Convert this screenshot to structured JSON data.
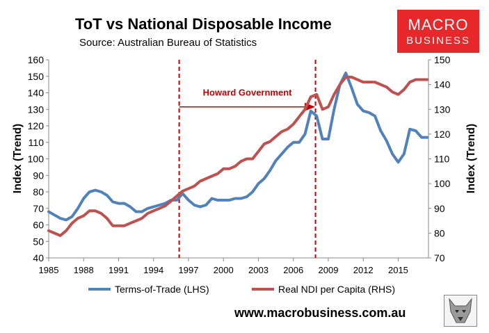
{
  "header": {
    "title": "ToT vs National Disposable Income",
    "subtitle": "Source: Australian Bureau of Statistics"
  },
  "logo": {
    "line1": "MACRO",
    "line2": "BUSINESS",
    "color": "#e8272a",
    "icon": "wolf-mascot-icon"
  },
  "footer": {
    "url": "www.macrobusiness.com.au"
  },
  "chart_data": {
    "type": "line",
    "title": "ToT vs National Disposable Income",
    "subtitle": "Source: Australian Bureau of Statistics",
    "xlabel": "",
    "ylabel_left": "Index (Trend)",
    "ylabel_right": "Index (Trend)",
    "xlim": [
      1985,
      2017.6
    ],
    "ylim_left": [
      40,
      160
    ],
    "ylim_right": [
      70,
      150
    ],
    "x_ticks": [
      1985,
      1988,
      1991,
      1994,
      1997,
      2000,
      2003,
      2006,
      2009,
      2012,
      2015
    ],
    "y_ticks_left": [
      40,
      50,
      60,
      70,
      80,
      90,
      100,
      110,
      120,
      130,
      140,
      150,
      160
    ],
    "y_ticks_right": [
      70,
      80,
      90,
      100,
      110,
      120,
      130,
      140,
      150
    ],
    "grid": false,
    "legend_position": "bottom",
    "annotation": {
      "label": "Howard Government",
      "color": "#c00000",
      "start": 1996.2,
      "end": 2007.9,
      "arrow_y_right": 131
    },
    "series": [
      {
        "name": "Terms-of-Trade (LHS)",
        "axis": "left",
        "color": "#4f81bd",
        "x": [
          1985,
          1985.5,
          1986,
          1986.5,
          1987,
          1987.5,
          1988,
          1988.5,
          1989,
          1989.5,
          1990,
          1990.5,
          1991,
          1991.5,
          1992,
          1992.5,
          1993,
          1993.5,
          1994,
          1994.5,
          1995,
          1995.5,
          1996,
          1996.5,
          1997,
          1997.5,
          1998,
          1998.5,
          1999,
          1999.5,
          2000,
          2000.5,
          2001,
          2001.5,
          2002,
          2002.5,
          2003,
          2003.5,
          2004,
          2004.5,
          2005,
          2005.5,
          2006,
          2006.5,
          2007,
          2007.5,
          2008,
          2008.5,
          2009,
          2009.5,
          2010,
          2010.5,
          2011,
          2011.5,
          2012,
          2012.5,
          2013,
          2013.5,
          2014,
          2014.5,
          2015,
          2015.5,
          2016,
          2016.5,
          2017,
          2017.5
        ],
        "values": [
          68,
          66,
          64,
          63,
          65,
          70,
          76,
          80,
          81,
          80,
          78,
          74,
          73,
          73,
          71,
          68,
          68,
          70,
          71,
          72,
          73,
          75,
          75,
          79,
          75,
          72,
          71,
          72,
          76,
          75,
          75,
          75,
          76,
          76,
          77,
          80,
          85,
          88,
          93,
          99,
          103,
          107,
          110,
          110,
          115,
          129,
          126,
          112,
          112,
          130,
          145,
          152,
          143,
          133,
          129,
          128,
          126,
          117,
          111,
          103,
          98,
          103,
          118,
          117,
          113,
          113
        ]
      },
      {
        "name": "Real NDI per Capita (RHS)",
        "axis": "right",
        "color": "#c0504d",
        "x": [
          1985,
          1985.5,
          1986,
          1986.5,
          1987,
          1987.5,
          1988,
          1988.5,
          1989,
          1989.5,
          1990,
          1990.5,
          1991,
          1991.5,
          1992,
          1992.5,
          1993,
          1993.5,
          1994,
          1994.5,
          1995,
          1995.5,
          1996,
          1996.5,
          1997,
          1997.5,
          1998,
          1998.5,
          1999,
          1999.5,
          2000,
          2000.5,
          2001,
          2001.5,
          2002,
          2002.5,
          2003,
          2003.5,
          2004,
          2004.5,
          2005,
          2005.5,
          2006,
          2006.5,
          2007,
          2007.5,
          2008,
          2008.5,
          2009,
          2009.5,
          2010,
          2010.5,
          2011,
          2011.5,
          2012,
          2012.5,
          2013,
          2013.5,
          2014,
          2014.5,
          2015,
          2015.5,
          2016,
          2016.5,
          2017,
          2017.5
        ],
        "values": [
          81,
          80,
          79,
          81,
          84,
          86,
          87,
          89,
          89,
          88,
          86,
          83,
          83,
          83,
          84,
          85,
          86,
          88,
          89,
          90,
          91,
          93,
          95,
          97,
          98,
          99,
          101,
          102,
          103,
          104,
          106,
          106,
          107,
          109,
          110,
          110,
          113,
          116,
          117,
          119,
          121,
          122,
          124,
          127,
          130,
          135,
          136,
          130,
          131,
          136,
          140,
          143,
          143,
          142,
          141,
          141,
          141,
          140,
          139,
          137,
          136,
          138,
          141,
          142,
          142,
          142
        ]
      }
    ]
  }
}
